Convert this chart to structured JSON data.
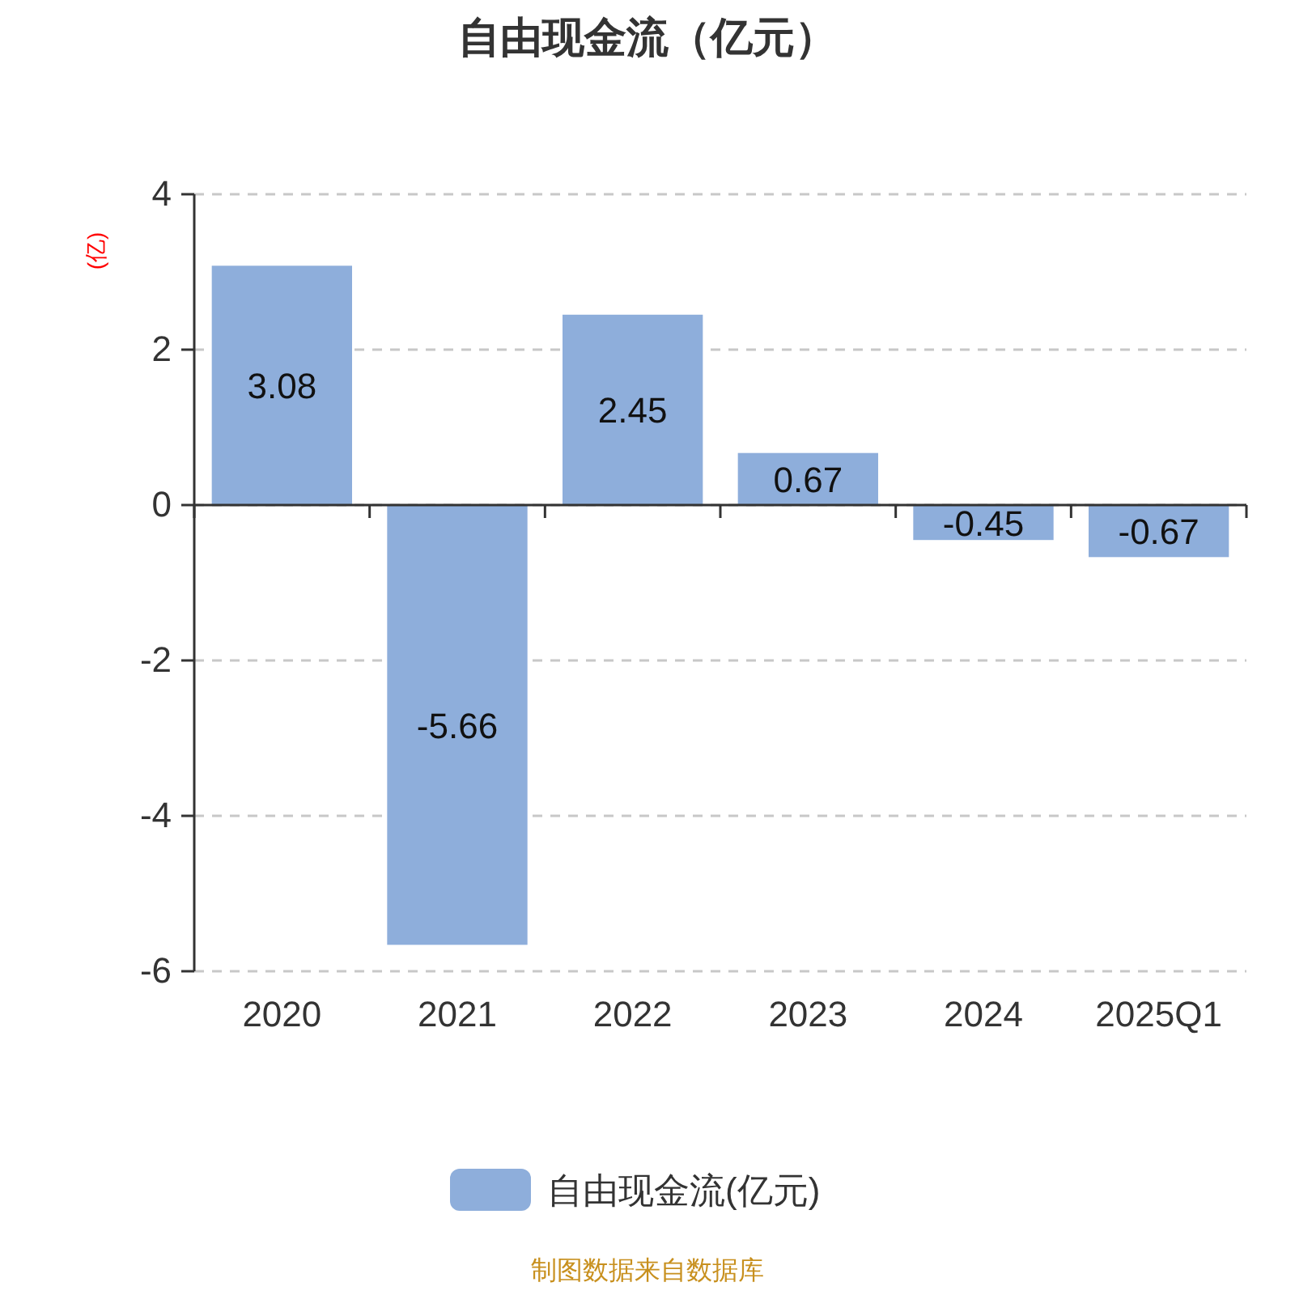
{
  "chart_data": {
    "type": "bar",
    "title": "自由现金流（亿元）",
    "ylabel": "(亿)",
    "categories": [
      "2020",
      "2021",
      "2022",
      "2023",
      "2024",
      "2025Q1"
    ],
    "series": [
      {
        "name": "自由现金流(亿元)",
        "color": "#8eaedb",
        "values": [
          3.08,
          -5.66,
          2.45,
          0.67,
          -0.45,
          -0.67
        ]
      }
    ],
    "ylim": [
      -6,
      4
    ],
    "yticks": [
      -6,
      -4,
      -2,
      0,
      2,
      4
    ],
    "grid": "y",
    "legend": "bottom",
    "data_labels": true,
    "annotations": [
      "制图数据来自数据库"
    ]
  }
}
